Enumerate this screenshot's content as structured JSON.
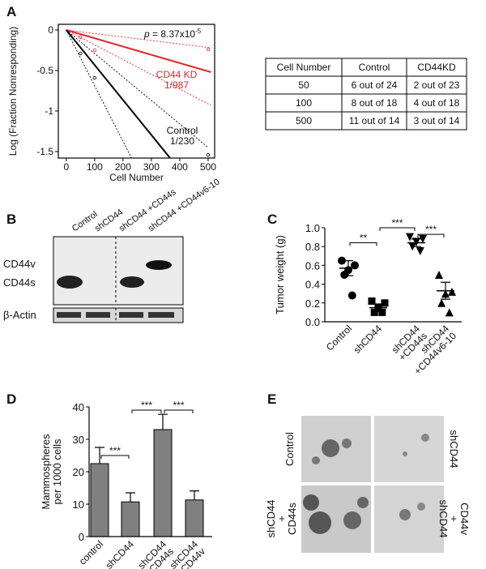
{
  "panel_labels": [
    "A",
    "B",
    "C",
    "D",
    "E"
  ],
  "chart_data": [
    {
      "type": "line",
      "ylabel": "Log (Fraction Nonresponding)",
      "xlabel": "Cell Number",
      "xlim": [
        -28,
        523
      ],
      "ylim": [
        -1.58,
        0.07
      ],
      "xticks": [
        0,
        100,
        200,
        300,
        400,
        500
      ],
      "yticks": [
        0,
        -0.5,
        -1,
        -1.5
      ],
      "series": [
        {
          "color": "#e3262c",
          "style": "solid",
          "x": [
            0,
            510
          ],
          "values": [
            0,
            -0.52
          ]
        },
        {
          "color": "#000000",
          "style": "solid",
          "x": [
            0,
            366
          ],
          "values": [
            0,
            -1.58
          ]
        },
        {
          "color": "#e3262c",
          "style": "dotted",
          "x": [
            0,
            510
          ],
          "values": [
            0,
            -0.22
          ]
        },
        {
          "color": "#e3262c",
          "style": "dotted",
          "x": [
            0,
            510
          ],
          "values": [
            0,
            -0.93
          ]
        },
        {
          "color": "#000000",
          "style": "dotted",
          "x": [
            0,
            230
          ],
          "values": [
            0,
            -1.58
          ]
        },
        {
          "color": "#000000",
          "style": "dotted",
          "x": [
            0,
            500
          ],
          "values": [
            0,
            -1.45
          ]
        },
        {
          "color": "#e3262c",
          "style": "points",
          "x": [
            50,
            100,
            500
          ],
          "values": [
            -0.09,
            -0.25,
            -0.24
          ]
        },
        {
          "color": "#000000",
          "style": "points",
          "x": [
            50,
            100,
            500
          ],
          "values": [
            -0.29,
            -0.59,
            -1.54
          ]
        }
      ],
      "p_label": "p",
      "p_value": " = 8.37x10",
      "p_exponent": "-5",
      "kd_label": "CD44 KD",
      "kd_estimate": "1/987",
      "control_label": "Control",
      "control_estimate": "1/230"
    },
    {
      "type": "scatter",
      "ylabel": "Tumor weight (g)",
      "categories": [
        [
          "Control"
        ],
        [
          "shCD44"
        ],
        [
          "shCD44",
          "+CD44s"
        ],
        [
          "shCD44",
          "+CD44v6-10"
        ]
      ],
      "ylim": [
        0,
        1.0
      ],
      "yticks": [
        {
          "value": 0,
          "label": "0.0"
        },
        0.2,
        0.4,
        0.6,
        0.8,
        {
          "value": 1,
          "label": "1.0"
        }
      ],
      "markers": [
        "circle",
        "square",
        "triangle-down",
        "triangle-up"
      ],
      "values": [
        [
          0.65,
          0.6,
          0.55,
          0.5,
          0.28
        ],
        [
          0.22,
          0.2,
          0.15,
          0.1,
          0.1
        ],
        [
          0.9,
          0.88,
          0.85,
          0.8,
          0.75
        ],
        [
          0.5,
          0.32,
          0.3,
          0.2,
          0.1
        ]
      ],
      "means": [
        0.57,
        0.15,
        0.84,
        0.33
      ],
      "sem": [
        0.08,
        0.04,
        0.04,
        0.09
      ],
      "brackets": [
        {
          "from": 0,
          "to": 1,
          "y": 0.84,
          "label": "**"
        },
        {
          "from": 1,
          "to": 2,
          "y": 1.0,
          "label": "***"
        },
        {
          "from": 2,
          "to": 3,
          "y": 0.93,
          "label": "***"
        }
      ]
    },
    {
      "type": "bar",
      "ylabel": [
        "Mammospheres",
        "per 1000 cells"
      ],
      "categories": [
        [
          "control"
        ],
        [
          "shCD44"
        ],
        [
          "shCD44",
          "+CD44s"
        ],
        [
          "shCD44",
          "+CD44v"
        ]
      ],
      "values": [
        22.5,
        10.7,
        33,
        11.3
      ],
      "errors": [
        5,
        2.8,
        4.7,
        2.8
      ],
      "color": "#808080",
      "ylim": [
        0,
        40
      ],
      "yticks": [
        0,
        10,
        20,
        30,
        40
      ],
      "brackets": [
        {
          "from": 0,
          "to": 1,
          "y": 25,
          "label": "***"
        },
        {
          "from": 1,
          "to": 2,
          "y": 39,
          "label": "***"
        },
        {
          "from": 2,
          "to": 3,
          "y": 39,
          "label": "***"
        }
      ]
    }
  ],
  "table": {
    "header": [
      "Cell Number",
      "Control",
      "CD44KD"
    ],
    "rows": [
      [
        "50",
        "6 out of 24",
        "2 out of 23"
      ],
      [
        "100",
        "8 out of 18",
        "4 out of 18"
      ],
      [
        "500",
        "11 out of 14",
        "3 out of 14"
      ]
    ]
  },
  "blot": {
    "lanes": [
      "Control",
      "shCD44",
      "shCD44 +CD44s",
      "shCD44 +CD44v6-10"
    ],
    "bands": [
      "CD44v",
      "CD44s"
    ],
    "loading": "β-Actin"
  },
  "images": {
    "labels": [
      [
        "Control"
      ],
      [
        "shCD44"
      ],
      [
        "shCD44",
        "+",
        "CD44s"
      ],
      [
        "shCD44",
        "+",
        "CD44v"
      ]
    ]
  }
}
